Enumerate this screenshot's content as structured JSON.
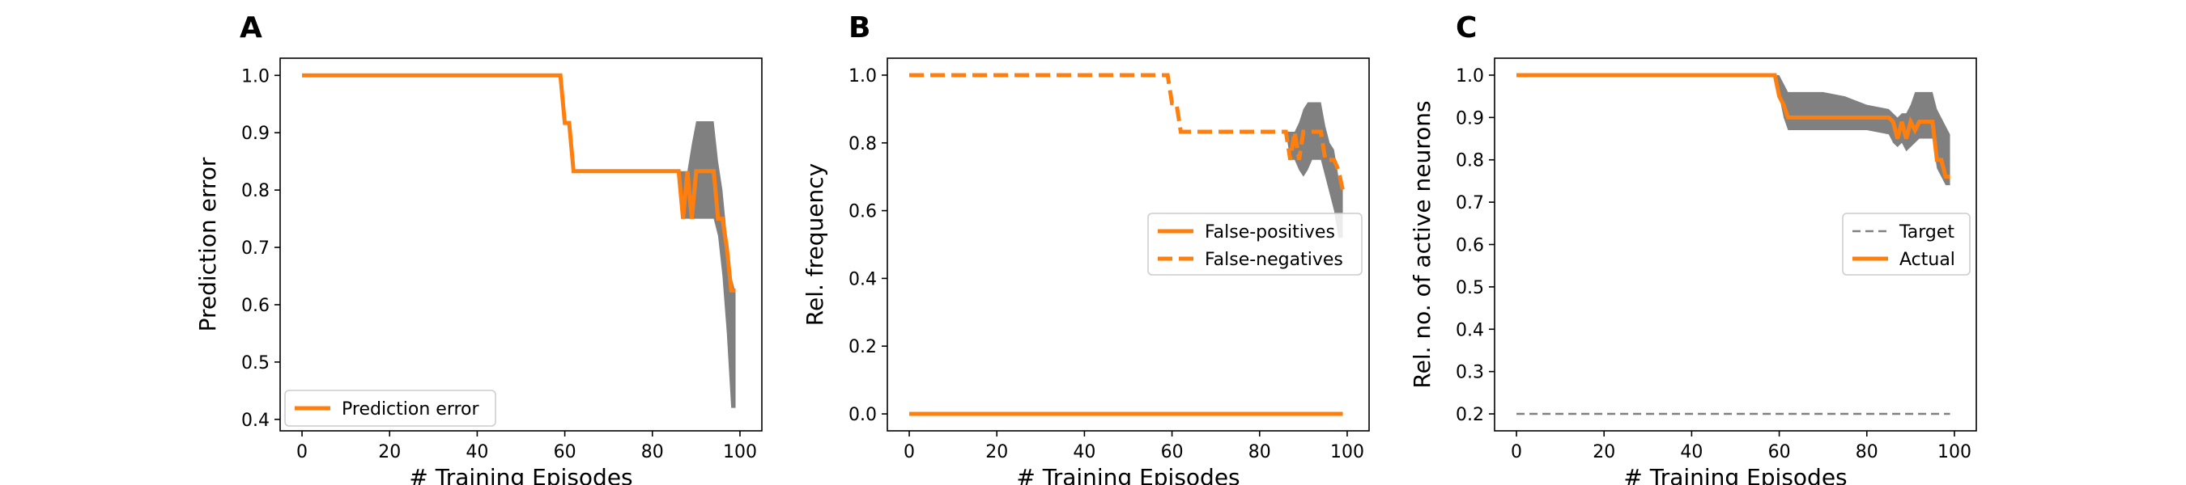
{
  "colors": {
    "orange": "#ff7f0e",
    "band": "#808080",
    "target": "#808080"
  },
  "chart_data": [
    {
      "panel": "A",
      "type": "line",
      "xlabel": "# Training Episodes",
      "ylabel": "Prediction error",
      "xlim": [
        -5,
        105
      ],
      "ylim": [
        0.38,
        1.03
      ],
      "xticks": [
        0,
        20,
        40,
        60,
        80,
        100
      ],
      "yticks": [
        0.4,
        0.5,
        0.6,
        0.7,
        0.8,
        0.9,
        1.0
      ],
      "legend": {
        "position": "lower-left"
      },
      "series": [
        {
          "name": "Prediction error",
          "style": "solid",
          "x": [
            0,
            59,
            60,
            61,
            62,
            63,
            86,
            87,
            88,
            89,
            90,
            91,
            92,
            93,
            94,
            95,
            96,
            97,
            98,
            99
          ],
          "y": [
            1.0,
            1.0,
            0.917,
            0.917,
            0.833,
            0.833,
            0.833,
            0.75,
            0.833,
            0.75,
            0.833,
            0.833,
            0.833,
            0.833,
            0.833,
            0.75,
            0.75,
            0.7,
            0.625,
            0.625
          ]
        }
      ],
      "band": {
        "x": [
          86,
          87,
          88,
          89,
          90,
          91,
          92,
          93,
          94,
          95,
          96,
          97,
          98,
          99
        ],
        "lower": [
          0.833,
          0.75,
          0.75,
          0.75,
          0.75,
          0.75,
          0.75,
          0.75,
          0.75,
          0.72,
          0.65,
          0.55,
          0.42,
          0.42
        ],
        "upper": [
          0.833,
          0.833,
          0.833,
          0.88,
          0.92,
          0.92,
          0.92,
          0.92,
          0.92,
          0.85,
          0.8,
          0.72,
          0.65,
          0.62
        ]
      }
    },
    {
      "panel": "B",
      "type": "line",
      "xlabel": "# Training Episodes",
      "ylabel": "Rel. frequency",
      "xlim": [
        -5,
        105
      ],
      "ylim": [
        -0.05,
        1.05
      ],
      "xticks": [
        0,
        20,
        40,
        60,
        80,
        100
      ],
      "yticks": [
        0.0,
        0.2,
        0.4,
        0.6,
        0.8,
        1.0
      ],
      "legend": {
        "position": "center-right"
      },
      "series": [
        {
          "name": "False-positives",
          "style": "solid",
          "x": [
            0,
            99
          ],
          "y": [
            0.0,
            0.0
          ]
        },
        {
          "name": "False-negatives",
          "style": "dashed",
          "x": [
            0,
            59,
            60,
            61,
            62,
            63,
            86,
            87,
            88,
            89,
            90,
            91,
            92,
            93,
            94,
            95,
            96,
            97,
            98,
            99
          ],
          "y": [
            1.0,
            1.0,
            0.917,
            0.917,
            0.833,
            0.833,
            0.833,
            0.75,
            0.833,
            0.75,
            0.833,
            0.833,
            0.833,
            0.833,
            0.833,
            0.75,
            0.75,
            0.75,
            0.72,
            0.66
          ]
        }
      ],
      "band": {
        "x": [
          86,
          87,
          88,
          89,
          90,
          91,
          92,
          93,
          94,
          95,
          96,
          97,
          98,
          99
        ],
        "lower": [
          0.833,
          0.75,
          0.75,
          0.72,
          0.7,
          0.72,
          0.75,
          0.75,
          0.75,
          0.7,
          0.65,
          0.6,
          0.52,
          0.52
        ],
        "upper": [
          0.833,
          0.833,
          0.833,
          0.86,
          0.9,
          0.92,
          0.92,
          0.92,
          0.92,
          0.85,
          0.8,
          0.78,
          0.7,
          0.68
        ]
      }
    },
    {
      "panel": "C",
      "type": "line",
      "xlabel": "# Training Episodes",
      "ylabel": "Rel. no. of active neurons",
      "xlim": [
        -5,
        105
      ],
      "ylim": [
        0.16,
        1.04
      ],
      "xticks": [
        0,
        20,
        40,
        60,
        80,
        100
      ],
      "yticks": [
        0.2,
        0.3,
        0.4,
        0.5,
        0.6,
        0.7,
        0.8,
        0.9,
        1.0
      ],
      "legend": {
        "position": "center-right"
      },
      "series": [
        {
          "name": "Target",
          "style": "dashed-thin",
          "x": [
            0,
            99
          ],
          "y": [
            0.2,
            0.2
          ]
        },
        {
          "name": "Actual",
          "style": "solid",
          "x": [
            0,
            59,
            60,
            61,
            62,
            63,
            85,
            86,
            87,
            88,
            89,
            90,
            91,
            92,
            93,
            94,
            95,
            96,
            97,
            98,
            99
          ],
          "y": [
            1.0,
            1.0,
            0.95,
            0.93,
            0.9,
            0.9,
            0.9,
            0.89,
            0.85,
            0.89,
            0.85,
            0.89,
            0.87,
            0.89,
            0.89,
            0.89,
            0.89,
            0.8,
            0.8,
            0.76,
            0.76
          ]
        }
      ],
      "band": {
        "x": [
          59,
          60,
          61,
          62,
          63,
          66,
          70,
          75,
          80,
          85,
          86,
          87,
          88,
          89,
          90,
          91,
          92,
          93,
          94,
          95,
          96,
          97,
          98,
          99
        ],
        "lower": [
          1.0,
          0.95,
          0.9,
          0.87,
          0.87,
          0.87,
          0.87,
          0.87,
          0.87,
          0.86,
          0.84,
          0.83,
          0.84,
          0.82,
          0.83,
          0.84,
          0.85,
          0.85,
          0.85,
          0.85,
          0.78,
          0.76,
          0.74,
          0.74
        ],
        "upper": [
          1.0,
          1.0,
          0.98,
          0.96,
          0.96,
          0.96,
          0.96,
          0.95,
          0.93,
          0.92,
          0.91,
          0.9,
          0.91,
          0.91,
          0.93,
          0.96,
          0.96,
          0.96,
          0.96,
          0.96,
          0.92,
          0.9,
          0.88,
          0.86
        ]
      }
    }
  ]
}
